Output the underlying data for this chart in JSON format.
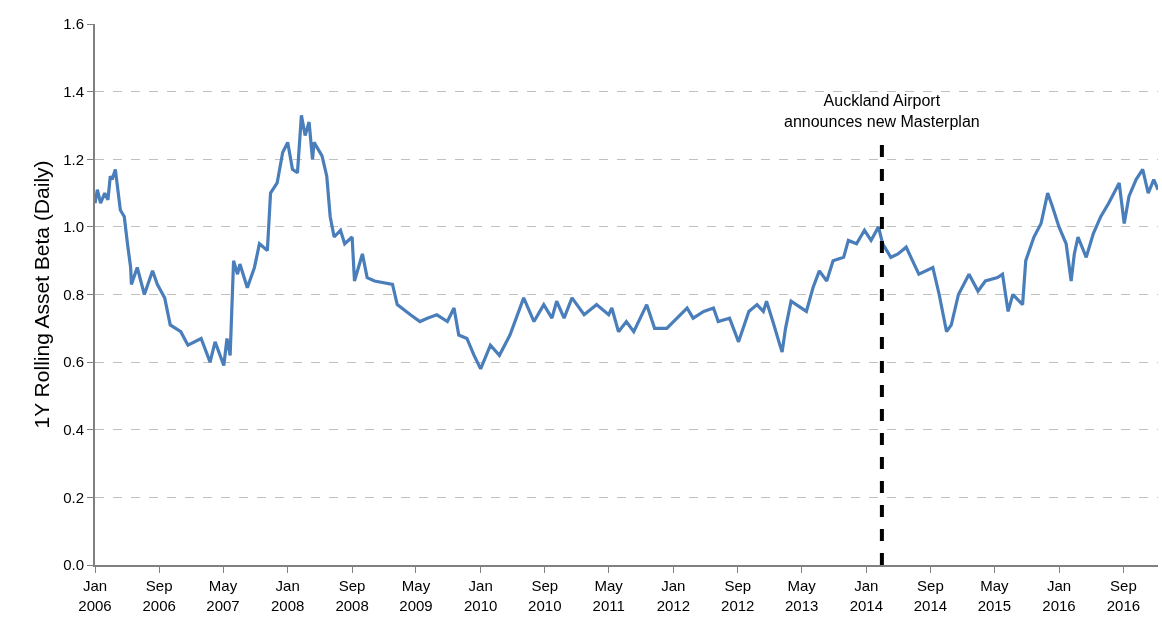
{
  "chart_data": {
    "type": "line",
    "ylabel": "1Y Rolling Asset Beta (Daily)",
    "x": [
      "2006-01-01",
      "2006-01-10",
      "2006-01-22",
      "2006-02-07",
      "2006-02-19",
      "2006-02-28",
      "2006-03-07",
      "2006-03-19",
      "2006-04-07",
      "2006-04-22",
      "2006-05-04",
      "2006-05-16",
      "2006-05-19",
      "2006-06-10",
      "2006-07-07",
      "2006-08-07",
      "2006-08-25",
      "2006-09-22",
      "2006-10-13",
      "2006-11-22",
      "2006-12-19",
      "2007-02-07",
      "2007-03-13",
      "2007-04-01",
      "2007-05-04",
      "2007-05-16",
      "2007-05-28",
      "2007-06-10",
      "2007-06-25",
      "2007-07-04",
      "2007-08-01",
      "2007-08-28",
      "2007-09-16",
      "2007-10-16",
      "2007-10-28",
      "2007-11-22",
      "2007-12-13",
      "2008-01-01",
      "2008-01-19",
      "2008-02-07",
      "2008-02-22",
      "2008-03-07",
      "2008-03-22",
      "2008-04-04",
      "2008-04-10",
      "2008-05-10",
      "2008-05-28",
      "2008-06-10",
      "2008-06-25",
      "2008-07-19",
      "2008-08-04",
      "2008-09-01",
      "2008-09-10",
      "2008-10-10",
      "2008-10-28",
      "2008-11-25",
      "2009-02-01",
      "2009-02-19",
      "2009-04-10",
      "2009-05-16",
      "2009-06-13",
      "2009-07-19",
      "2009-08-28",
      "2009-09-22",
      "2009-10-10",
      "2009-11-10",
      "2009-12-07",
      "2010-01-01",
      "2010-02-07",
      "2010-03-13",
      "2010-04-22",
      "2010-06-13",
      "2010-07-22",
      "2010-08-28",
      "2010-09-28",
      "2010-10-16",
      "2010-11-13",
      "2010-12-13",
      "2011-01-28",
      "2011-03-16",
      "2011-05-01",
      "2011-05-13",
      "2011-06-07",
      "2011-07-07",
      "2011-08-04",
      "2011-09-22",
      "2011-10-22",
      "2011-12-07",
      "2012-02-22",
      "2012-03-16",
      "2012-04-25",
      "2012-06-01",
      "2012-06-19",
      "2012-08-01",
      "2012-09-04",
      "2012-10-13",
      "2012-11-13",
      "2012-12-07",
      "2012-12-19",
      "2013-01-16",
      "2013-02-04",
      "2013-02-16",
      "2013-03-01",
      "2013-03-22",
      "2013-05-19",
      "2013-06-13",
      "2013-07-07",
      "2013-08-04",
      "2013-08-28",
      "2013-10-07",
      "2013-10-25",
      "2013-11-25",
      "2013-12-25",
      "2014-01-19",
      "2014-02-16",
      "2014-03-04",
      "2014-04-04",
      "2014-05-01",
      "2014-06-01",
      "2014-07-19",
      "2014-09-10",
      "2014-10-04",
      "2014-11-01",
      "2014-11-19",
      "2014-12-16",
      "2015-01-25",
      "2015-02-28",
      "2015-03-28",
      "2015-05-13",
      "2015-06-01",
      "2015-06-22",
      "2015-07-10",
      "2015-08-16",
      "2015-08-28",
      "2015-09-28",
      "2015-10-25",
      "2015-11-19",
      "2015-12-07",
      "2016-01-01",
      "2016-01-28",
      "2016-02-16",
      "2016-02-28",
      "2016-03-13",
      "2016-04-13",
      "2016-05-10",
      "2016-06-07",
      "2016-07-07",
      "2016-08-16",
      "2016-09-04",
      "2016-09-22",
      "2016-10-19",
      "2016-11-13",
      "2016-12-04",
      "2016-12-25",
      "2017-01-10"
    ],
    "series": [
      {
        "color": "#4a7ebb",
        "values": [
          1.07,
          1.11,
          1.07,
          1.1,
          1.08,
          1.15,
          1.14,
          1.17,
          1.05,
          1.03,
          0.95,
          0.88,
          0.83,
          0.88,
          0.8,
          0.87,
          0.83,
          0.79,
          0.71,
          0.69,
          0.65,
          0.67,
          0.6,
          0.66,
          0.59,
          0.67,
          0.62,
          0.9,
          0.86,
          0.89,
          0.82,
          0.88,
          0.95,
          0.93,
          1.1,
          1.13,
          1.22,
          1.25,
          1.17,
          1.16,
          1.33,
          1.27,
          1.31,
          1.2,
          1.25,
          1.21,
          1.15,
          1.03,
          0.97,
          0.99,
          0.95,
          0.97,
          0.84,
          0.92,
          0.85,
          0.84,
          0.83,
          0.77,
          0.74,
          0.72,
          0.73,
          0.74,
          0.72,
          0.76,
          0.68,
          0.67,
          0.62,
          0.58,
          0.65,
          0.62,
          0.68,
          0.79,
          0.72,
          0.77,
          0.73,
          0.78,
          0.73,
          0.79,
          0.74,
          0.77,
          0.74,
          0.76,
          0.69,
          0.72,
          0.69,
          0.77,
          0.7,
          0.7,
          0.76,
          0.73,
          0.75,
          0.76,
          0.72,
          0.73,
          0.66,
          0.75,
          0.77,
          0.75,
          0.78,
          0.71,
          0.66,
          0.63,
          0.7,
          0.78,
          0.75,
          0.82,
          0.87,
          0.84,
          0.9,
          0.91,
          0.96,
          0.95,
          0.99,
          0.96,
          1.0,
          0.95,
          0.91,
          0.92,
          0.94,
          0.86,
          0.88,
          0.8,
          0.69,
          0.71,
          0.8,
          0.86,
          0.81,
          0.84,
          0.85,
          0.86,
          0.75,
          0.8,
          0.77,
          0.9,
          0.97,
          1.01,
          1.1,
          1.06,
          1.0,
          0.95,
          0.84,
          0.92,
          0.97,
          0.91,
          0.98,
          1.03,
          1.07,
          1.13,
          1.01,
          1.09,
          1.14,
          1.17,
          1.1,
          1.14,
          1.11
        ]
      }
    ],
    "xlim": [
      "2006-01-01",
      "2017-01-10"
    ],
    "xticks": [
      {
        "value": "2006-01-01",
        "label": "Jan\n2006"
      },
      {
        "value": "2006-09-01",
        "label": "Sep\n2006"
      },
      {
        "value": "2007-05-01",
        "label": "May\n2007"
      },
      {
        "value": "2008-01-01",
        "label": "Jan\n2008"
      },
      {
        "value": "2008-09-01",
        "label": "Sep\n2008"
      },
      {
        "value": "2009-05-01",
        "label": "May\n2009"
      },
      {
        "value": "2010-01-01",
        "label": "Jan\n2010"
      },
      {
        "value": "2010-09-01",
        "label": "Sep\n2010"
      },
      {
        "value": "2011-05-01",
        "label": "May\n2011"
      },
      {
        "value": "2012-01-01",
        "label": "Jan\n2012"
      },
      {
        "value": "2012-09-01",
        "label": "Sep\n2012"
      },
      {
        "value": "2013-05-01",
        "label": "May\n2013"
      },
      {
        "value": "2014-01-01",
        "label": "Jan\n2014"
      },
      {
        "value": "2014-09-01",
        "label": "Sep\n2014"
      },
      {
        "value": "2015-05-01",
        "label": "May\n2015"
      },
      {
        "value": "2016-01-01",
        "label": "Jan\n2016"
      },
      {
        "value": "2016-09-01",
        "label": "Sep\n2016"
      }
    ],
    "ylim": [
      0,
      1.6
    ],
    "yticks": [
      {
        "value": 0,
        "label": "0.0"
      },
      {
        "value": 0.2,
        "label": "0.2"
      },
      {
        "value": 0.4,
        "label": "0.4"
      },
      {
        "value": 0.6,
        "label": "0.6"
      },
      {
        "value": 0.8,
        "label": "0.8"
      },
      {
        "value": 1.0,
        "label": "1.0"
      },
      {
        "value": 1.2,
        "label": "1.2"
      },
      {
        "value": 1.4,
        "label": "1.4"
      },
      {
        "value": 1.6,
        "label": "1.6"
      }
    ],
    "grid": "y",
    "ref_lines": [
      {
        "axis": "x",
        "value": "2014-03-01",
        "label": "Auckland Airport\nannounces new Masterplan",
        "color": "#000000",
        "line_style": "dashed"
      }
    ]
  }
}
